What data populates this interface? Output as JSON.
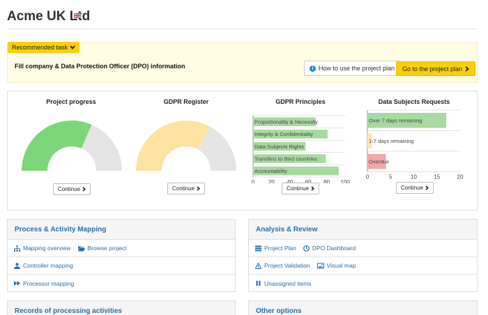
{
  "header": {
    "company": "Acme UK Ltd",
    "flag_icon": "uk-flag-icon"
  },
  "recommended": {
    "badge_label": "Recommended task",
    "task_text": "Fill company & Data Protection Officer (DPO) information",
    "help_button": "How to use the project plan",
    "go_button": "Go to the project plan"
  },
  "charts": {
    "continue_label": "Continue",
    "progress": {
      "title": "Project progress",
      "fraction": 0.63,
      "color": "#7dd67a",
      "rest_color": "#e4e4e4"
    },
    "register": {
      "title": "GDPR Register",
      "fraction": 0.66,
      "color": "#fde3a2",
      "rest_color": "#e4e4e4"
    },
    "principles": {
      "title": "GDPR Principles"
    },
    "dsr": {
      "title": "Data Subjects Requests"
    }
  },
  "chart_data": [
    {
      "type": "pie",
      "title": "Project progress",
      "values": [
        63,
        37
      ],
      "colors": [
        "#7dd67a",
        "#e4e4e4"
      ]
    },
    {
      "type": "pie",
      "title": "GDPR Register",
      "values": [
        66,
        34
      ],
      "colors": [
        "#fde3a2",
        "#e4e4e4"
      ]
    },
    {
      "type": "bar",
      "orientation": "horizontal",
      "title": "GDPR Principles",
      "categories": [
        "Proportionality & Necessity",
        "Integrity & Confidentiality",
        "Data Subjects Rights",
        "Transfers to third countries",
        "Accountability"
      ],
      "values": [
        68,
        81,
        57,
        79,
        93
      ],
      "xlim": [
        0,
        100
      ],
      "xticks": [
        "0",
        "20",
        "40",
        "60",
        "80",
        "100"
      ],
      "color": "#a8d9a0"
    },
    {
      "type": "bar",
      "orientation": "horizontal",
      "title": "Data Subjects Requests",
      "categories": [
        "Over 7 days remaining",
        "1-7 days remaining",
        "Overdue"
      ],
      "values": [
        17,
        1,
        4
      ],
      "colors": [
        "#a8d9a0",
        "#fde3b8",
        "#f0a8a8"
      ],
      "xlim": [
        0,
        20
      ],
      "xticks": [
        "0",
        "5",
        "10",
        "15",
        "20"
      ]
    }
  ],
  "panels": {
    "mapping": {
      "title": "Process & Activity Mapping",
      "rows": [
        [
          {
            "label": "Mapping overview",
            "icon": "sitemap-icon"
          },
          {
            "label": "Browse project",
            "icon": "folder-open-icon"
          }
        ],
        [
          {
            "label": "Controller mapping",
            "icon": "controller-icon"
          }
        ],
        [
          {
            "label": "Processor mapping",
            "icon": "fast-forward-icon"
          }
        ]
      ]
    },
    "analysis": {
      "title": "Analysis & Review",
      "rows": [
        [
          {
            "label": "Project Plan",
            "icon": "list-icon"
          },
          {
            "label": "DPO Dashboard",
            "icon": "dashboard-icon"
          }
        ],
        [
          {
            "label": "Project Validation",
            "icon": "warning-icon"
          },
          {
            "label": "Visual map",
            "icon": "image-icon"
          }
        ],
        [
          {
            "label": "Unassigned items",
            "icon": "pause-icon"
          }
        ]
      ]
    },
    "records": {
      "title": "Records of processing activities"
    },
    "other": {
      "title": "Other options"
    }
  }
}
